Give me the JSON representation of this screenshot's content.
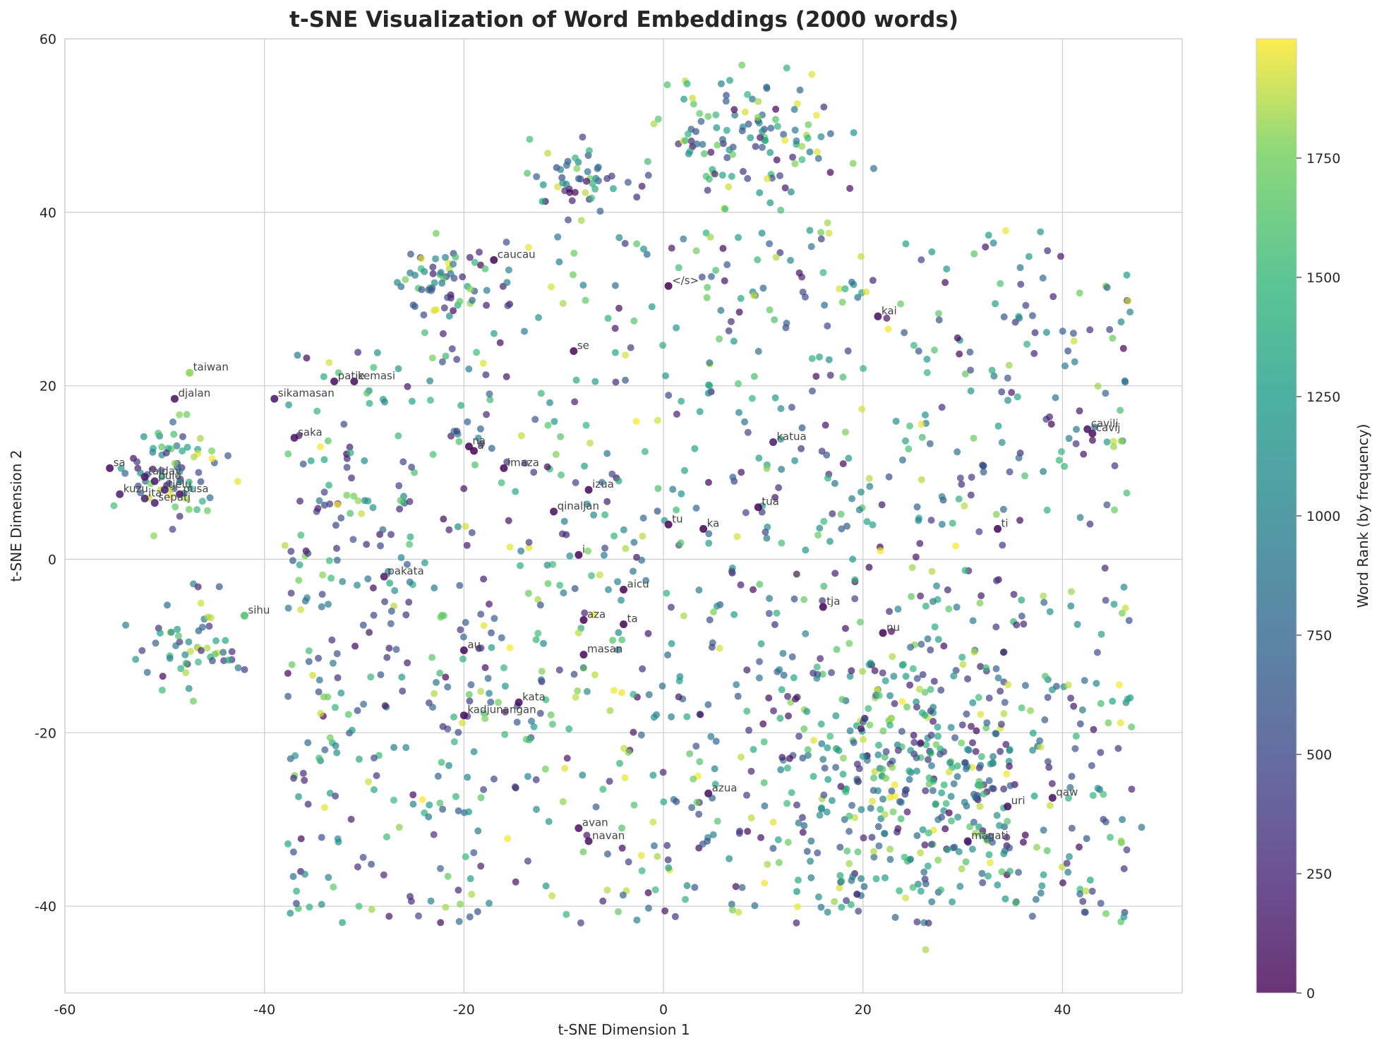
{
  "chart_data": {
    "type": "scatter",
    "title": "t-SNE Visualization of Word Embeddings (2000 words)",
    "xlabel": "t-SNE Dimension 1",
    "ylabel": "t-SNE Dimension 2",
    "xlim": [
      -60,
      52
    ],
    "ylim": [
      -50,
      60
    ],
    "xticks": [
      "-60",
      "-40",
      "-20",
      "0",
      "20",
      "40"
    ],
    "yticks": [
      "60",
      "40",
      "20",
      "0",
      "-20",
      "-40"
    ],
    "grid": true,
    "colormap": "viridis",
    "colorbar": {
      "label": "Word Rank (by frequency)",
      "range": [
        0,
        2000
      ],
      "ticks": [
        "1750",
        "1500",
        "1250",
        "1000",
        "750",
        "500",
        "250",
        "0"
      ]
    },
    "point_count": 2000,
    "clusters": [
      {
        "cx": 8,
        "cy": 48,
        "r": 8
      },
      {
        "cx": -9,
        "cy": 43,
        "r": 4
      },
      {
        "cx": -22,
        "cy": 32,
        "r": 4
      },
      {
        "cx": -49,
        "cy": 10,
        "r": 5
      },
      {
        "cx": -47,
        "cy": -10,
        "r": 5
      },
      {
        "cx": 25,
        "cy": -25,
        "r": 14
      },
      {
        "cx": 0,
        "cy": 5,
        "r": 32
      }
    ],
    "labeled_points": [
      {
        "word": "caucau",
        "x": -17,
        "y": 34.5,
        "rank": 30
      },
      {
        "word": "</s>",
        "x": 0.5,
        "y": 31.5,
        "rank": 1
      },
      {
        "word": "kai",
        "x": 21.5,
        "y": 28,
        "rank": 80
      },
      {
        "word": "taiwan",
        "x": -47.5,
        "y": 21.5,
        "rank": 1800
      },
      {
        "word": "patje",
        "x": -33,
        "y": 20.5,
        "rank": 60
      },
      {
        "word": "kemasi",
        "x": -31,
        "y": 20.5,
        "rank": 70
      },
      {
        "word": "djalan",
        "x": -49,
        "y": 18.5,
        "rank": 90
      },
      {
        "word": "sikamasan",
        "x": -39,
        "y": 18.5,
        "rank": 120
      },
      {
        "word": "se",
        "x": -9,
        "y": 24,
        "rank": 40
      },
      {
        "word": "saka",
        "x": -37,
        "y": 14,
        "rank": 100
      },
      {
        "word": "na",
        "x": -19.5,
        "y": 13,
        "rank": 2
      },
      {
        "word": "a",
        "x": -19,
        "y": 12.5,
        "rank": 3
      },
      {
        "word": "katua",
        "x": 11,
        "y": 13.5,
        "rank": 150
      },
      {
        "word": "cavili",
        "x": 42.5,
        "y": 15,
        "rank": 110
      },
      {
        "word": "cavij",
        "x": 43,
        "y": 14.5,
        "rank": 115
      },
      {
        "word": "sa",
        "x": -55.5,
        "y": 10.5,
        "rank": 50
      },
      {
        "word": "imaza",
        "x": -16,
        "y": 10.5,
        "rank": 20
      },
      {
        "word": "taiday",
        "x": -52,
        "y": 9.5,
        "rank": 130
      },
      {
        "word": "pulu",
        "x": -51,
        "y": 9,
        "rank": 140
      },
      {
        "word": "tjelu",
        "x": -50,
        "y": 8,
        "rank": 160
      },
      {
        "word": "pusa",
        "x": -48.5,
        "y": 7.5,
        "rank": 170
      },
      {
        "word": "izua",
        "x": -7.5,
        "y": 8,
        "rank": 25
      },
      {
        "word": "kuzu",
        "x": -54.5,
        "y": 7.5,
        "rank": 180
      },
      {
        "word": "ita",
        "x": -52,
        "y": 7,
        "rank": 190
      },
      {
        "word": "sepatj",
        "x": -51,
        "y": 6.5,
        "rank": 200
      },
      {
        "word": "tua",
        "x": 9.5,
        "y": 6,
        "rank": 8
      },
      {
        "word": "qinaljan",
        "x": -11,
        "y": 5.5,
        "rank": 60
      },
      {
        "word": "tu",
        "x": 0.5,
        "y": 4,
        "rank": 10
      },
      {
        "word": "ka",
        "x": 4,
        "y": 3.5,
        "rank": 5
      },
      {
        "word": "ti",
        "x": 33.5,
        "y": 3.5,
        "rank": 12
      },
      {
        "word": "i",
        "x": -8.5,
        "y": 0.5,
        "rank": 4
      },
      {
        "word": "pakata",
        "x": -28,
        "y": -2,
        "rank": 160
      },
      {
        "word": "aicu",
        "x": -4,
        "y": -3.5,
        "rank": 15
      },
      {
        "word": "tja",
        "x": 16,
        "y": -5.5,
        "rank": 18
      },
      {
        "word": "sihu",
        "x": -42,
        "y": -6.5,
        "rank": 1600
      },
      {
        "word": "aza",
        "x": -8,
        "y": -7,
        "rank": 22
      },
      {
        "word": "ta",
        "x": -4,
        "y": -7.5,
        "rank": 14
      },
      {
        "word": "nu",
        "x": 22,
        "y": -8.5,
        "rank": 16
      },
      {
        "word": "au",
        "x": -20,
        "y": -10.5,
        "rank": 35
      },
      {
        "word": "masan",
        "x": -8,
        "y": -11,
        "rank": 45
      },
      {
        "word": "kata",
        "x": -14.5,
        "y": -16.5,
        "rank": 55
      },
      {
        "word": "kadjunangan",
        "x": -20,
        "y": -18,
        "rank": 65
      },
      {
        "word": "azua",
        "x": 4.5,
        "y": -27,
        "rank": 75
      },
      {
        "word": "qaw",
        "x": 39,
        "y": -27.5,
        "rank": 85
      },
      {
        "word": "uri",
        "x": 34.5,
        "y": -28.5,
        "rank": 95
      },
      {
        "word": "avan",
        "x": -8.5,
        "y": -31,
        "rank": 105
      },
      {
        "word": "navan",
        "x": -7.5,
        "y": -32.5,
        "rank": 115
      },
      {
        "word": "magati",
        "x": 30.5,
        "y": -32.5,
        "rank": 125
      }
    ]
  }
}
